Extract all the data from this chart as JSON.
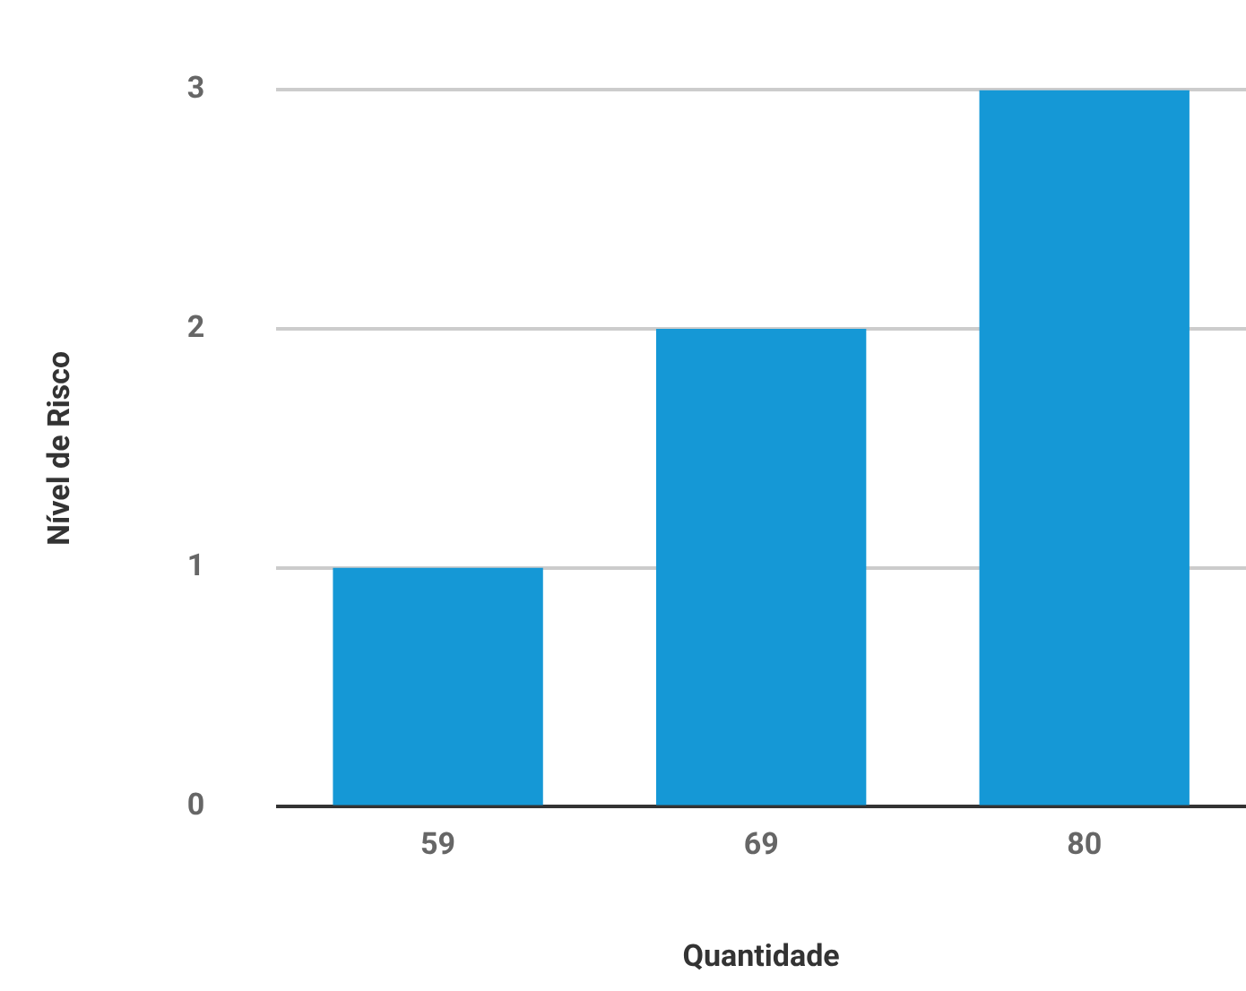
{
  "chart_data": {
    "type": "bar",
    "xlabel": "Quantidade",
    "ylabel": "Nível de Risco",
    "categories": [
      "59",
      "69",
      "80"
    ],
    "values": [
      1,
      2,
      3
    ],
    "color": "#1598d6",
    "ylim": [
      0,
      3
    ],
    "yticks": [
      0,
      1,
      2,
      3
    ],
    "grid": "y"
  }
}
